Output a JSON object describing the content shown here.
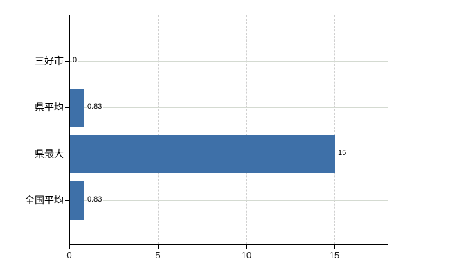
{
  "chart_data": {
    "type": "bar",
    "orientation": "horizontal",
    "title": "",
    "xlabel": "",
    "ylabel": "",
    "categories": [
      "三好市",
      "県平均",
      "県最大",
      "全国平均"
    ],
    "values": [
      0,
      0.83,
      15,
      0.83
    ],
    "value_labels": [
      "0",
      "0.83",
      "15",
      "0.83"
    ],
    "xticks": [
      0,
      5,
      10,
      15
    ],
    "xtick_labels": [
      "0",
      "5",
      "10",
      "15"
    ],
    "xlim": [
      0,
      18
    ],
    "grid": "on",
    "legend": "none",
    "colors": {
      "bar": "#3e70a8",
      "axis": "#000000",
      "vertical_gridline": "#cfcfcf",
      "horizontal_gridline": "#d4dad1",
      "background": "#ffffff",
      "text": "#000000"
    }
  }
}
